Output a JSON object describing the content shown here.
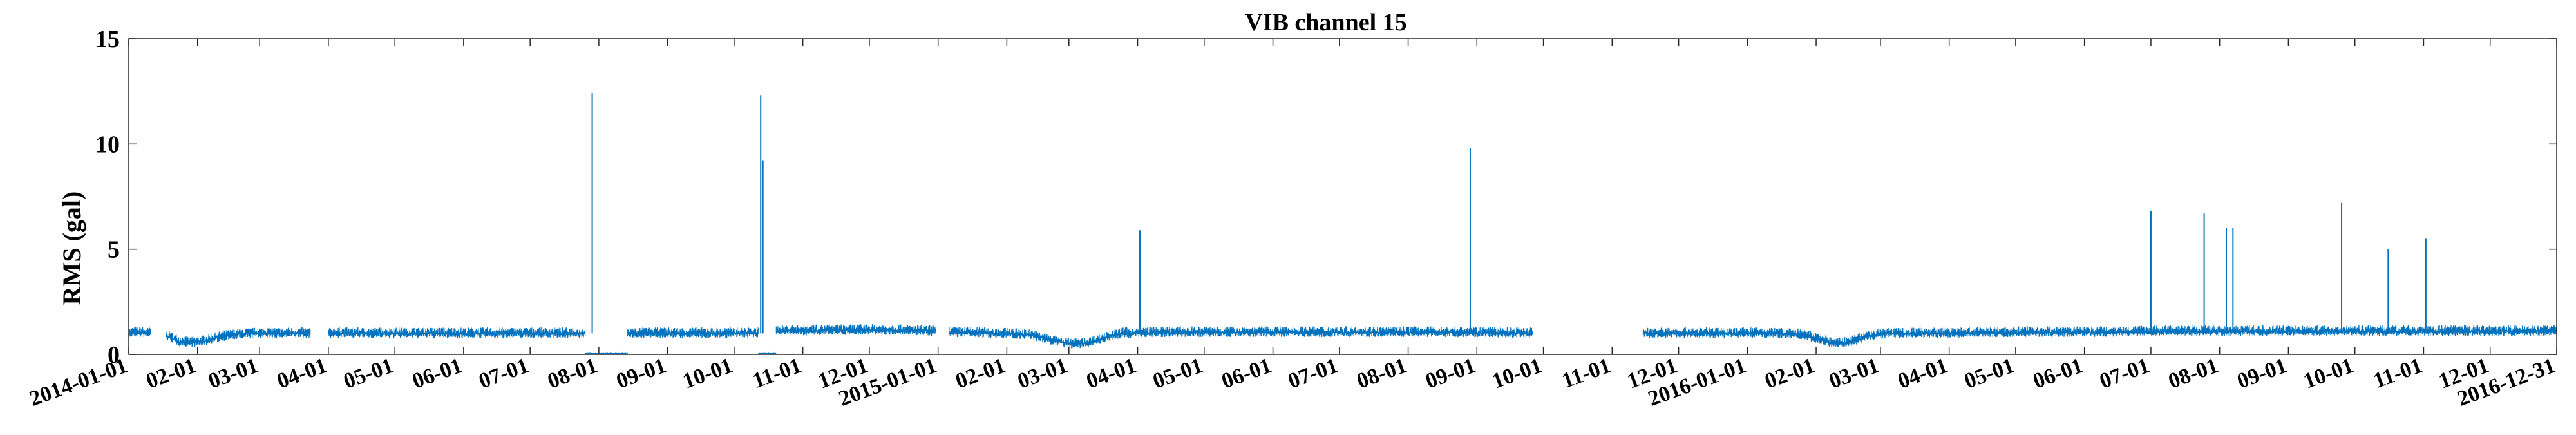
{
  "chart_data": {
    "type": "line",
    "title": "VIB channel 15",
    "ylabel": "RMS (gal)",
    "xlabel": "",
    "ylim": [
      0,
      15
    ],
    "xlim": [
      "2014-01-01",
      "2016-12-31"
    ],
    "yticks": [
      0,
      5,
      10,
      15
    ],
    "xticks": [
      {
        "date": "2014-01-01",
        "label": "2014-01-01"
      },
      {
        "date": "2014-02-01",
        "label": "02-01"
      },
      {
        "date": "2014-03-01",
        "label": "03-01"
      },
      {
        "date": "2014-04-01",
        "label": "04-01"
      },
      {
        "date": "2014-05-01",
        "label": "05-01"
      },
      {
        "date": "2014-06-01",
        "label": "06-01"
      },
      {
        "date": "2014-07-01",
        "label": "07-01"
      },
      {
        "date": "2014-08-01",
        "label": "08-01"
      },
      {
        "date": "2014-09-01",
        "label": "09-01"
      },
      {
        "date": "2014-10-01",
        "label": "10-01"
      },
      {
        "date": "2014-11-01",
        "label": "11-01"
      },
      {
        "date": "2014-12-01",
        "label": "12-01"
      },
      {
        "date": "2015-01-01",
        "label": "2015-01-01"
      },
      {
        "date": "2015-02-01",
        "label": "02-01"
      },
      {
        "date": "2015-03-01",
        "label": "03-01"
      },
      {
        "date": "2015-04-01",
        "label": "04-01"
      },
      {
        "date": "2015-05-01",
        "label": "05-01"
      },
      {
        "date": "2015-06-01",
        "label": "06-01"
      },
      {
        "date": "2015-07-01",
        "label": "07-01"
      },
      {
        "date": "2015-08-01",
        "label": "08-01"
      },
      {
        "date": "2015-09-01",
        "label": "09-01"
      },
      {
        "date": "2015-10-01",
        "label": "10-01"
      },
      {
        "date": "2015-11-01",
        "label": "11-01"
      },
      {
        "date": "2015-12-01",
        "label": "12-01"
      },
      {
        "date": "2016-01-01",
        "label": "2016-01-01"
      },
      {
        "date": "2016-02-01",
        "label": "02-01"
      },
      {
        "date": "2016-03-01",
        "label": "03-01"
      },
      {
        "date": "2016-04-01",
        "label": "04-01"
      },
      {
        "date": "2016-05-01",
        "label": "05-01"
      },
      {
        "date": "2016-06-01",
        "label": "06-01"
      },
      {
        "date": "2016-07-01",
        "label": "07-01"
      },
      {
        "date": "2016-08-01",
        "label": "08-01"
      },
      {
        "date": "2016-09-01",
        "label": "09-01"
      },
      {
        "date": "2016-10-01",
        "label": "10-01"
      },
      {
        "date": "2016-11-01",
        "label": "11-01"
      },
      {
        "date": "2016-12-01",
        "label": "12-01"
      },
      {
        "date": "2016-12-31",
        "label": "2016-12-31"
      }
    ],
    "grid": false,
    "legend": "none",
    "series_color": "#0072BD",
    "series": [
      {
        "segments": [
          {
            "start": "2014-01-01",
            "end": "2014-01-11",
            "points": [
              [
                "2014-01-01",
                1.0
              ],
              [
                "2014-01-05",
                1.05
              ],
              [
                "2014-01-09",
                1.0
              ],
              [
                "2014-01-11",
                1.0
              ]
            ]
          },
          {
            "start": "2014-01-18",
            "end": "2014-03-24",
            "points": [
              [
                "2014-01-18",
                0.9
              ],
              [
                "2014-01-24",
                0.6
              ],
              [
                "2014-01-30",
                0.55
              ],
              [
                "2014-02-05",
                0.65
              ],
              [
                "2014-02-12",
                0.85
              ],
              [
                "2014-02-19",
                0.95
              ],
              [
                "2014-03-01",
                1.0
              ],
              [
                "2014-03-12",
                1.0
              ],
              [
                "2014-03-24",
                1.0
              ]
            ]
          },
          {
            "start": "2014-04-01",
            "end": "2014-07-26",
            "points": [
              [
                "2014-04-01",
                1.0
              ],
              [
                "2014-04-25",
                1.0
              ],
              [
                "2014-05-20",
                1.0
              ],
              [
                "2014-06-15",
                1.0
              ],
              [
                "2014-07-10",
                1.0
              ],
              [
                "2014-07-26",
                1.0
              ]
            ]
          },
          {
            "start": "2014-07-26",
            "end": "2014-08-14",
            "points": [
              [
                "2014-07-26",
                0.05
              ],
              [
                "2014-08-05",
                0.05
              ],
              [
                "2014-08-14",
                0.05
              ]
            ]
          },
          {
            "start": "2014-08-14",
            "end": "2014-10-12",
            "points": [
              [
                "2014-08-14",
                1.0
              ],
              [
                "2014-09-01",
                1.0
              ],
              [
                "2014-09-20",
                1.0
              ],
              [
                "2014-10-12",
                1.0
              ]
            ]
          },
          {
            "start": "2014-10-12",
            "end": "2014-10-20",
            "points": [
              [
                "2014-10-12",
                0.05
              ],
              [
                "2014-10-20",
                0.05
              ]
            ]
          },
          {
            "start": "2014-10-20",
            "end": "2014-12-31",
            "points": [
              [
                "2014-10-20",
                1.1
              ],
              [
                "2014-11-15",
                1.15
              ],
              [
                "2014-12-10",
                1.15
              ],
              [
                "2014-12-31",
                1.1
              ]
            ]
          },
          {
            "start": "2015-01-06",
            "end": "2015-09-26",
            "points": [
              [
                "2015-01-06",
                1.05
              ],
              [
                "2015-01-25",
                1.0
              ],
              [
                "2015-02-10",
                0.95
              ],
              [
                "2015-02-20",
                0.7
              ],
              [
                "2015-03-01",
                0.5
              ],
              [
                "2015-03-08",
                0.5
              ],
              [
                "2015-03-16",
                0.75
              ],
              [
                "2015-03-25",
                1.0
              ],
              [
                "2015-04-15",
                1.05
              ],
              [
                "2015-05-15",
                1.05
              ],
              [
                "2015-06-15",
                1.05
              ],
              [
                "2015-07-15",
                1.05
              ],
              [
                "2015-08-15",
                1.05
              ],
              [
                "2015-09-26",
                1.0
              ]
            ]
          },
          {
            "start": "2015-11-15",
            "end": "2016-12-31",
            "points": [
              [
                "2015-11-15",
                1.0
              ],
              [
                "2015-12-15",
                1.0
              ],
              [
                "2016-01-10",
                1.0
              ],
              [
                "2016-01-25",
                0.95
              ],
              [
                "2016-02-03",
                0.7
              ],
              [
                "2016-02-10",
                0.5
              ],
              [
                "2016-02-17",
                0.6
              ],
              [
                "2016-02-24",
                0.85
              ],
              [
                "2016-03-05",
                1.0
              ],
              [
                "2016-04-05",
                1.0
              ],
              [
                "2016-05-05",
                1.05
              ],
              [
                "2016-06-05",
                1.05
              ],
              [
                "2016-07-05",
                1.1
              ],
              [
                "2016-08-05",
                1.1
              ],
              [
                "2016-09-05",
                1.1
              ],
              [
                "2016-10-05",
                1.1
              ],
              [
                "2016-11-05",
                1.1
              ],
              [
                "2016-12-31",
                1.1
              ]
            ]
          }
        ],
        "spikes": [
          {
            "x": "2014-07-29",
            "y": 12.4
          },
          {
            "x": "2014-10-13",
            "y": 12.3
          },
          {
            "x": "2014-10-14",
            "y": 9.2
          },
          {
            "x": "2015-04-02",
            "y": 5.9
          },
          {
            "x": "2015-08-29",
            "y": 9.8
          },
          {
            "x": "2016-07-01",
            "y": 6.8
          },
          {
            "x": "2016-07-25",
            "y": 6.7
          },
          {
            "x": "2016-08-04",
            "y": 6.0
          },
          {
            "x": "2016-08-07",
            "y": 6.0
          },
          {
            "x": "2016-09-25",
            "y": 7.2
          },
          {
            "x": "2016-10-16",
            "y": 5.0
          },
          {
            "x": "2016-11-02",
            "y": 5.5
          }
        ]
      }
    ]
  }
}
